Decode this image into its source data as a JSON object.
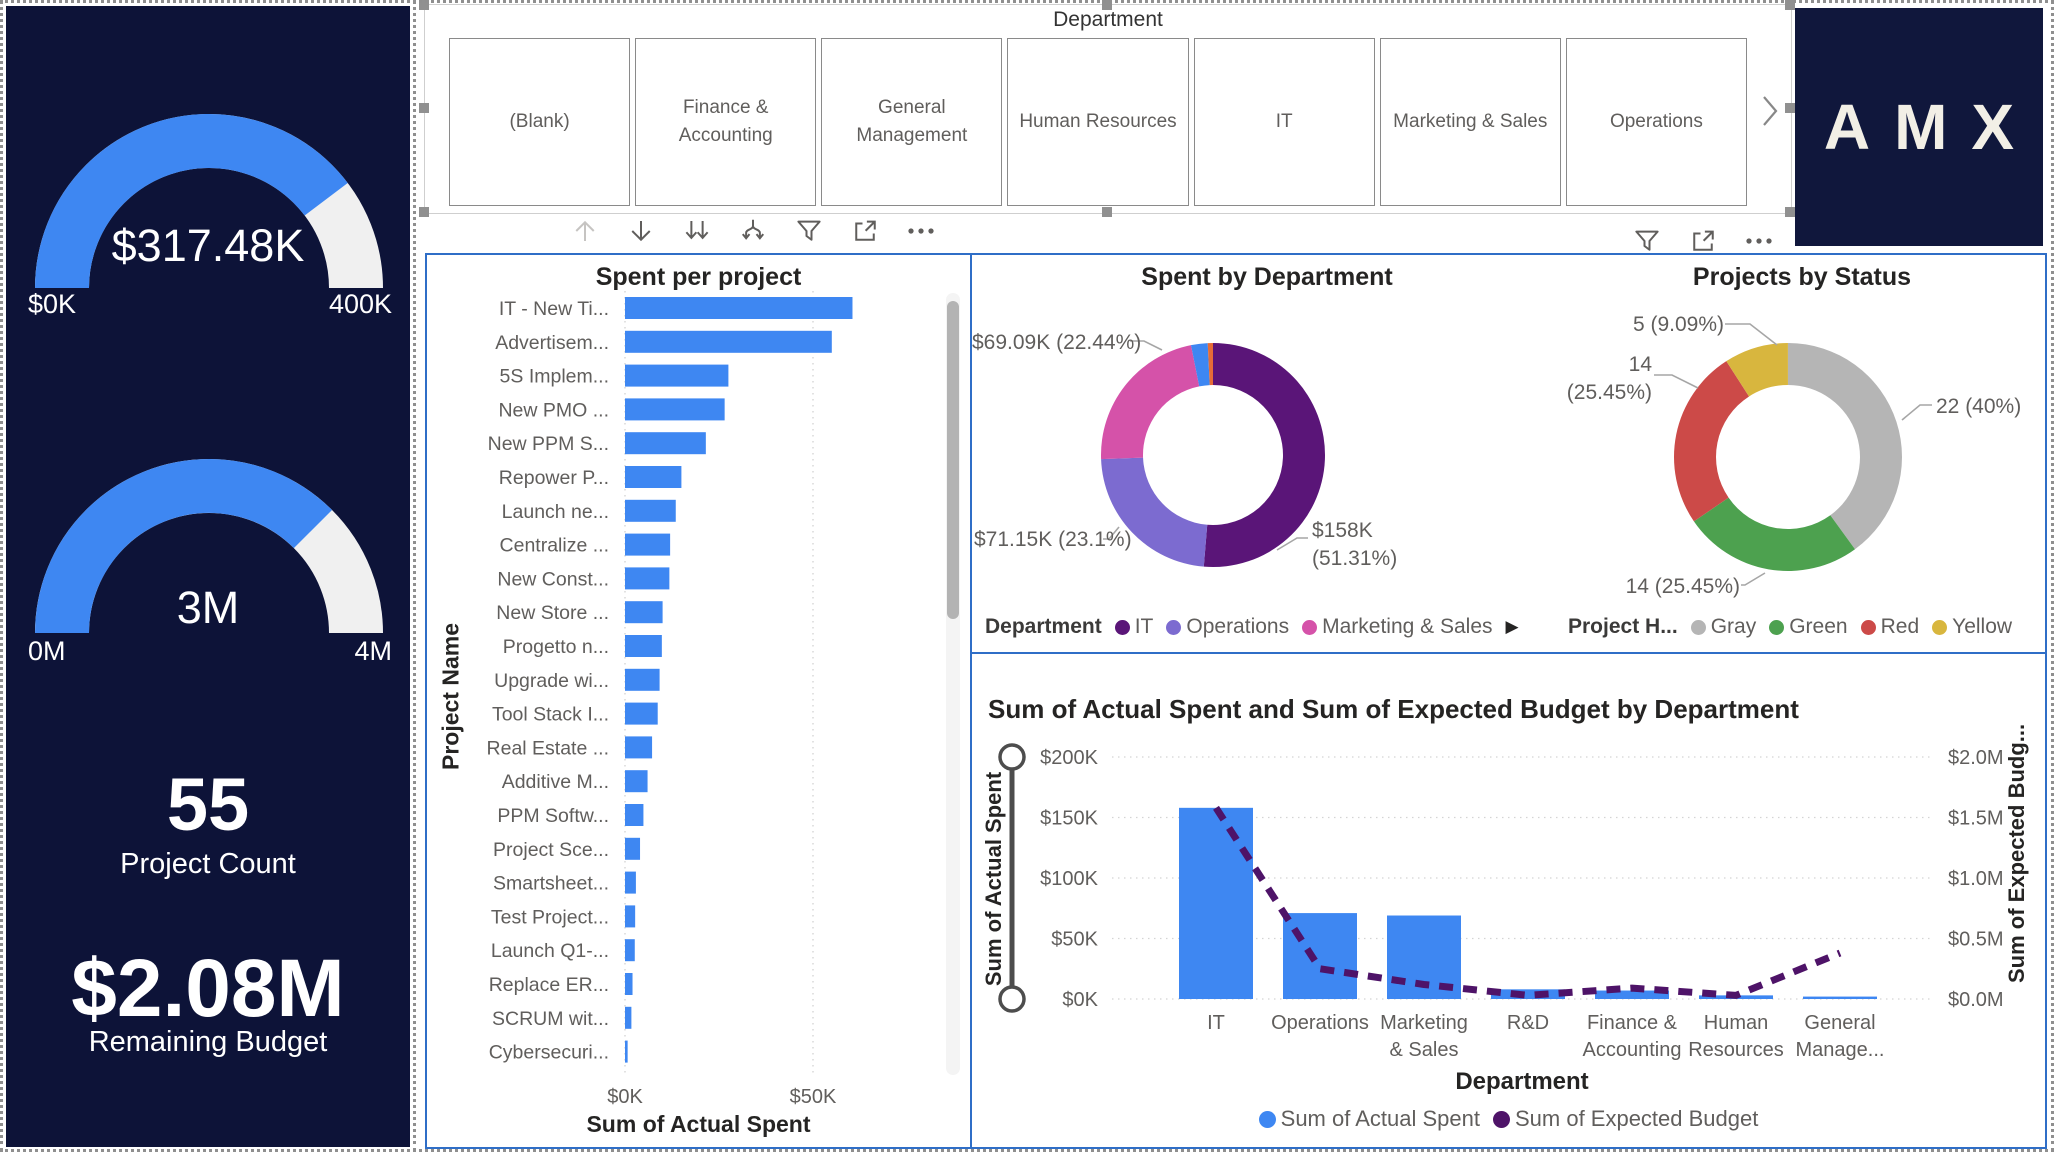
{
  "kpi_panel": {
    "spent_gauge": {
      "value": "$317.48K",
      "min": "$0K",
      "max": "400K",
      "fraction": 0.7937
    },
    "budget_gauge": {
      "value": "3M",
      "min": "0M",
      "max": "4M",
      "fraction": 0.75
    },
    "project_count": {
      "value": "55",
      "label": "Project Count"
    },
    "remaining_budget": {
      "value": "$2.08M",
      "label": "Remaining Budget"
    }
  },
  "slicer": {
    "title": "Department",
    "options": [
      "(Blank)",
      "Finance & Accounting",
      "General Management",
      "Human Resources",
      "IT",
      "Marketing & Sales",
      "Operations"
    ]
  },
  "logo_text": "AMX",
  "toolbars": {
    "drill_icons": [
      "drill-up",
      "drill-down",
      "expand-all-down",
      "go-to-next-level",
      "filter",
      "focus-mode",
      "more-options"
    ],
    "status_icons": [
      "filter",
      "focus-mode",
      "more-options"
    ]
  },
  "spent_per_project": {
    "type": "bar",
    "title": "Spent per project",
    "y_axis_title": "Project Name",
    "x_axis_title": "Sum of Actual Spent",
    "x_ticks": [
      "$0K",
      "$50K"
    ],
    "bar_color": "#3E87F2",
    "bars": [
      {
        "label": "IT - New Ti...",
        "value_k": 60.5
      },
      {
        "label": "Advertisem...",
        "value_k": 55
      },
      {
        "label": "5S Implem...",
        "value_k": 27.5
      },
      {
        "label": "New PMO ...",
        "value_k": 26.5
      },
      {
        "label": "New PPM S...",
        "value_k": 21.5
      },
      {
        "label": "Repower P...",
        "value_k": 15
      },
      {
        "label": "Launch ne...",
        "value_k": 13.5
      },
      {
        "label": "Centralize ...",
        "value_k": 12
      },
      {
        "label": "New Const...",
        "value_k": 11.8
      },
      {
        "label": "New Store ...",
        "value_k": 10
      },
      {
        "label": "Progetto n...",
        "value_k": 9.8
      },
      {
        "label": "Upgrade wi...",
        "value_k": 9.2
      },
      {
        "label": "Tool Stack I...",
        "value_k": 8.7
      },
      {
        "label": "Real Estate ...",
        "value_k": 7.2
      },
      {
        "label": "Additive M...",
        "value_k": 6
      },
      {
        "label": "PPM Softw...",
        "value_k": 4.9
      },
      {
        "label": "Project Sce...",
        "value_k": 4
      },
      {
        "label": "Smartsheet...",
        "value_k": 2.9
      },
      {
        "label": "Test Project...",
        "value_k": 2.7
      },
      {
        "label": "Launch Q1-...",
        "value_k": 2.6
      },
      {
        "label": "Replace ER...",
        "value_k": 2
      },
      {
        "label": "SCRUM wit...",
        "value_k": 1.7
      },
      {
        "label": "Cybersecuri...",
        "value_k": 0.7
      }
    ]
  },
  "spent_by_department": {
    "type": "pie",
    "title": "Spent by Department",
    "legend_title": "Department",
    "legend_more_arrow": "▶",
    "slices": [
      {
        "name": "IT",
        "pct": 51.31,
        "color": "#5A1578",
        "callout_lines": [
          "$158K",
          "(51.31%)"
        ]
      },
      {
        "name": "Operations",
        "pct": 23.1,
        "color": "#7C6BD0",
        "callout_lines": [
          "$71.15K (23.1%)"
        ]
      },
      {
        "name": "Marketing & Sales",
        "pct": 22.44,
        "color": "#D552A9",
        "callout_lines": [
          "$69.09K (22.44%)"
        ]
      },
      {
        "name": "",
        "pct": 2.4,
        "color": "#3E87F2",
        "callout_lines": []
      },
      {
        "name": "",
        "pct": 0.75,
        "color": "#E66C37",
        "callout_lines": []
      }
    ],
    "legend_items": [
      {
        "label": "IT",
        "color": "#5A1578"
      },
      {
        "label": "Operations",
        "color": "#7C6BD0"
      },
      {
        "label": "Marketing & Sales",
        "color": "#D552A9"
      }
    ]
  },
  "projects_by_status": {
    "type": "pie",
    "title": "Projects by Status",
    "legend_title": "Project H...",
    "slices": [
      {
        "name": "Gray",
        "pct": 40,
        "color": "#B5B5B5",
        "callout_lines": [
          "22 (40%)"
        ]
      },
      {
        "name": "Green",
        "pct": 25.45,
        "color": "#4DA14F",
        "callout_lines": [
          "14 (25.45%)"
        ]
      },
      {
        "name": "Red",
        "pct": 25.45,
        "color": "#CC4A48",
        "callout_lines": [
          "14",
          "(25.45%)"
        ]
      },
      {
        "name": "Yellow",
        "pct": 9.09,
        "color": "#D8B63E",
        "callout_lines": [
          "5 (9.09%)"
        ]
      }
    ],
    "legend_items": [
      {
        "label": "Gray",
        "color": "#B5B5B5"
      },
      {
        "label": "Green",
        "color": "#4DA14F"
      },
      {
        "label": "Red",
        "color": "#CC4A48"
      },
      {
        "label": "Yellow",
        "color": "#D8B63E"
      }
    ]
  },
  "budget_by_department": {
    "type": "bar",
    "title": "Sum of Actual Spent and Sum of Expected Budget by Department",
    "x_axis_title": "Department",
    "left_axis_title": "Sum of Actual Spent",
    "right_axis_title": "Sum of Expected Budg...",
    "left_ticks": [
      "$200K",
      "$150K",
      "$100K",
      "$50K",
      "$0K"
    ],
    "right_ticks": [
      "$2.0M",
      "$1.5M",
      "$1.0M",
      "$0.5M",
      "$0.0M"
    ],
    "categories": [
      [
        "IT"
      ],
      [
        "Operations"
      ],
      [
        "Marketing",
        "& Sales"
      ],
      [
        "R&D"
      ],
      [
        "Finance &",
        "Accounting"
      ],
      [
        "Human",
        "Resources"
      ],
      [
        "General",
        "Manage..."
      ]
    ],
    "bar_series": {
      "name": "Sum of Actual Spent",
      "color": "#3E87F2",
      "axis_max_k": 200,
      "values_k": [
        158,
        71,
        69,
        8,
        7,
        3,
        2
      ]
    },
    "line_series": {
      "name": "Sum of Expected Budget",
      "color": "#4E1368",
      "axis_max_m": 2,
      "values_m": [
        1.58,
        0.25,
        0.12,
        0.03,
        0.09,
        0.03,
        0.38
      ]
    }
  }
}
